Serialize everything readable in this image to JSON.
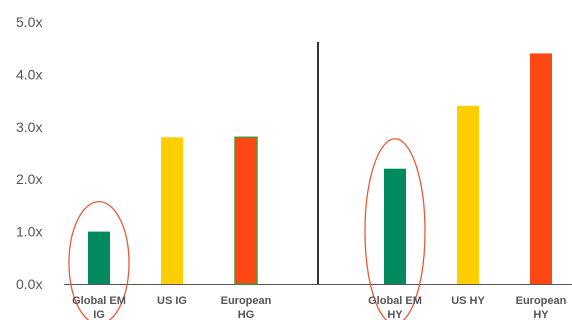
{
  "chart_data": {
    "type": "bar",
    "title": "",
    "xlabel": "",
    "ylabel": "",
    "ylim": [
      0,
      5
    ],
    "yticks": [
      {
        "value": 0,
        "label": "0.0x"
      },
      {
        "value": 1,
        "label": "1.0x"
      },
      {
        "value": 2,
        "label": "2.0x"
      },
      {
        "value": 3,
        "label": "3.0x"
      },
      {
        "value": 4,
        "label": "4.0x"
      },
      {
        "value": 5,
        "label": "5.0x"
      }
    ],
    "grid": false,
    "legend": "none",
    "divider_between_groups": true,
    "bars": [
      {
        "label_lines": [
          "Global EM",
          "IG"
        ],
        "value": 1.0,
        "color": "#008a5e",
        "circled": true,
        "group": 0
      },
      {
        "label_lines": [
          "US IG"
        ],
        "value": 2.8,
        "color": "#ffcd00",
        "circled": false,
        "group": 0
      },
      {
        "label_lines": [
          "European",
          "HG"
        ],
        "value": 2.8,
        "color": "#ff4713",
        "circled": false,
        "group": 0
      },
      {
        "label_lines": [
          "Global EM",
          "HY"
        ],
        "value": 2.2,
        "color": "#008a5e",
        "circled": true,
        "group": 1
      },
      {
        "label_lines": [
          "US HY"
        ],
        "value": 3.4,
        "color": "#ffcd00",
        "circled": false,
        "group": 1
      },
      {
        "label_lines": [
          "European",
          "HY"
        ],
        "value": 4.4,
        "color": "#ff4713",
        "circled": false,
        "group": 1
      }
    ],
    "colors": {
      "axis": "#555555",
      "divider": "#333333",
      "circle": "#e8593a",
      "bar_outline_european_hg": "#4a9a3a"
    }
  }
}
